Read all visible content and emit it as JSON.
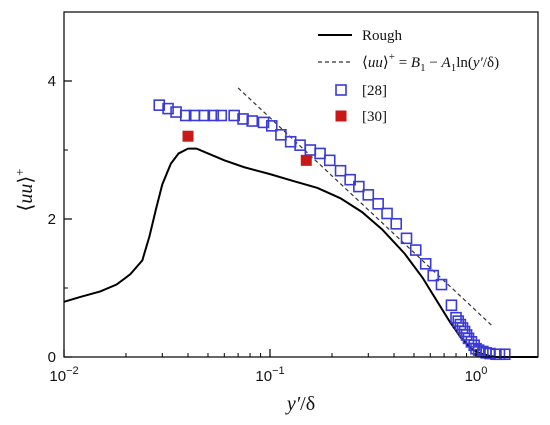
{
  "chart_data": {
    "type": "line",
    "x_scale": "log",
    "xlim": [
      0.01,
      2
    ],
    "ylim": [
      0,
      5
    ],
    "x_ticks": [
      {
        "value": 0.01,
        "base": "10",
        "exp": "−2"
      },
      {
        "value": 0.1,
        "base": "10",
        "exp": "−1"
      },
      {
        "value": 1,
        "base": "10",
        "exp": "0"
      }
    ],
    "y_ticks": [
      {
        "value": 0,
        "label": "0"
      },
      {
        "value": 2,
        "label": "2"
      },
      {
        "value": 4,
        "label": "4"
      }
    ],
    "xlabel": "y′/δ",
    "ylabel": "⟨uu⟩+",
    "grid": false,
    "legend_position": "top-right",
    "series": [
      {
        "name": "Rough",
        "style": "solid-line",
        "color": "#000000",
        "x": [
          0.01,
          0.012,
          0.015,
          0.018,
          0.021,
          0.024,
          0.026,
          0.028,
          0.03,
          0.033,
          0.036,
          0.04,
          0.044,
          0.05,
          0.06,
          0.075,
          0.1,
          0.13,
          0.17,
          0.22,
          0.28,
          0.35,
          0.45,
          0.55,
          0.65,
          0.75,
          0.85,
          0.95,
          1.05,
          1.15,
          1.25,
          1.4,
          2.0
        ],
        "y": [
          0.8,
          0.87,
          0.95,
          1.05,
          1.2,
          1.4,
          1.75,
          2.15,
          2.5,
          2.8,
          2.95,
          3.02,
          3.02,
          2.95,
          2.85,
          2.75,
          2.65,
          2.55,
          2.45,
          2.3,
          2.1,
          1.85,
          1.5,
          1.15,
          0.8,
          0.5,
          0.27,
          0.12,
          0.05,
          0.02,
          0.0,
          0.0,
          0.0
        ]
      },
      {
        "name": "⟨uu⟩+ = B1 − A1ln(y′/δ)",
        "style": "dashed-line",
        "color": "#333333",
        "x": [
          0.07,
          1.2
        ],
        "y": [
          3.9,
          0.45
        ]
      },
      {
        "name": "[28]",
        "style": "open-square",
        "color": "#3a3ad6",
        "x": [
          0.029,
          0.032,
          0.035,
          0.039,
          0.043,
          0.048,
          0.053,
          0.058,
          0.067,
          0.074,
          0.082,
          0.093,
          0.102,
          0.113,
          0.126,
          0.14,
          0.157,
          0.175,
          0.195,
          0.22,
          0.245,
          0.27,
          0.3,
          0.335,
          0.37,
          0.41,
          0.46,
          0.51,
          0.57,
          0.62,
          0.68,
          0.76,
          0.8,
          0.82,
          0.84,
          0.86,
          0.88,
          0.9,
          0.92,
          0.95,
          0.98,
          1.0,
          1.03,
          1.08,
          1.12,
          1.17,
          1.25,
          1.3,
          1.38
        ],
        "y": [
          3.65,
          3.6,
          3.55,
          3.5,
          3.5,
          3.5,
          3.5,
          3.5,
          3.5,
          3.45,
          3.42,
          3.4,
          3.35,
          3.22,
          3.12,
          3.07,
          3.0,
          2.95,
          2.85,
          2.7,
          2.57,
          2.47,
          2.35,
          2.22,
          2.08,
          1.93,
          1.72,
          1.55,
          1.35,
          1.18,
          1.05,
          0.75,
          0.57,
          0.52,
          0.47,
          0.42,
          0.37,
          0.32,
          0.27,
          0.22,
          0.17,
          0.12,
          0.1,
          0.08,
          0.06,
          0.05,
          0.04,
          0.04,
          0.04
        ]
      },
      {
        "name": "[30]",
        "style": "filled-square",
        "color": "#c81818",
        "x": [
          0.04,
          0.15
        ],
        "y": [
          3.2,
          2.85
        ]
      }
    ]
  }
}
